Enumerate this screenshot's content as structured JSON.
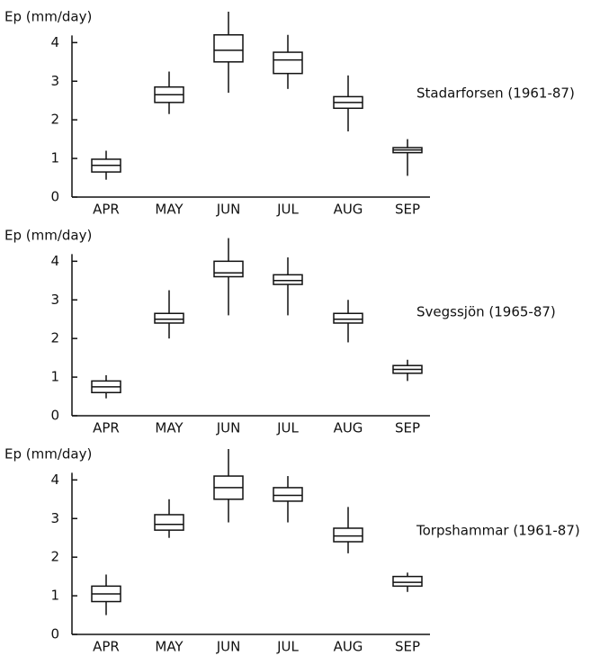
{
  "chart_data": [
    {
      "type": "box",
      "ylabel": "Ep (mm/day)",
      "annotation": "Stadarforsen (1961-87)",
      "categories": [
        "APR",
        "MAY",
        "JUN",
        "JUL",
        "AUG",
        "SEP"
      ],
      "min": [
        0.45,
        2.15,
        2.7,
        2.8,
        1.7,
        0.55
      ],
      "q1": [
        0.65,
        2.45,
        3.5,
        3.2,
        2.3,
        1.15
      ],
      "median": [
        0.82,
        2.65,
        3.8,
        3.55,
        2.45,
        1.22
      ],
      "q3": [
        0.98,
        2.85,
        4.2,
        3.75,
        2.6,
        1.28
      ],
      "max": [
        1.2,
        3.25,
        4.8,
        4.2,
        3.15,
        1.5
      ],
      "ylim": [
        0,
        4.8
      ],
      "yticks": [
        0,
        1,
        2,
        3,
        4
      ]
    },
    {
      "type": "box",
      "ylabel": "Ep (mm/day)",
      "annotation": "Svegssjön (1965-87)",
      "categories": [
        "APR",
        "MAY",
        "JUN",
        "JUL",
        "AUG",
        "SEP"
      ],
      "min": [
        0.45,
        2.0,
        2.6,
        2.6,
        1.9,
        0.9
      ],
      "q1": [
        0.6,
        2.4,
        3.6,
        3.4,
        2.4,
        1.1
      ],
      "median": [
        0.75,
        2.5,
        3.7,
        3.5,
        2.5,
        1.2
      ],
      "q3": [
        0.9,
        2.65,
        4.0,
        3.65,
        2.65,
        1.3
      ],
      "max": [
        1.05,
        3.25,
        4.6,
        4.1,
        3.0,
        1.45
      ],
      "ylim": [
        0,
        4.8
      ],
      "yticks": [
        0,
        1,
        2,
        3,
        4
      ]
    },
    {
      "type": "box",
      "ylabel": "Ep (mm/day)",
      "annotation": "Torpshammar (1961-87)",
      "categories": [
        "APR",
        "MAY",
        "JUN",
        "JUL",
        "AUG",
        "SEP"
      ],
      "min": [
        0.5,
        2.5,
        2.9,
        2.9,
        2.1,
        1.1
      ],
      "q1": [
        0.85,
        2.7,
        3.5,
        3.45,
        2.4,
        1.25
      ],
      "median": [
        1.05,
        2.85,
        3.8,
        3.6,
        2.55,
        1.35
      ],
      "q3": [
        1.25,
        3.1,
        4.1,
        3.8,
        2.75,
        1.5
      ],
      "max": [
        1.55,
        3.5,
        4.8,
        4.1,
        3.3,
        1.6
      ],
      "ylim": [
        0,
        4.8
      ],
      "yticks": [
        0,
        1,
        2,
        3,
        4
      ]
    }
  ]
}
